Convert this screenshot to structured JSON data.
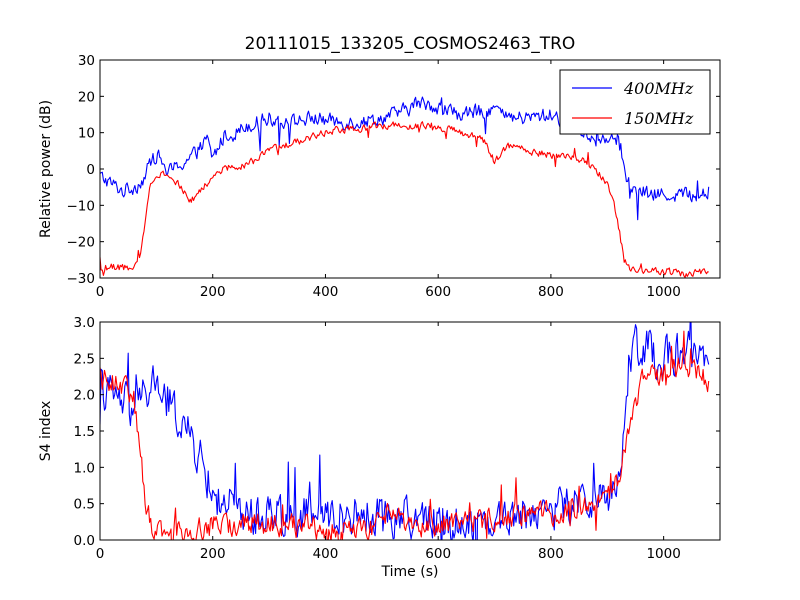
{
  "figure": {
    "title": "20111015_133205_COSMOS2463_TRO"
  },
  "chart_data": [
    {
      "type": "line",
      "title": "20111015_133205_COSMOS2463_TRO",
      "xlabel": "",
      "ylabel": "Relative power (dB)",
      "xlim": [
        0,
        1100
      ],
      "ylim": [
        -30,
        30
      ],
      "xticks": [
        0,
        200,
        400,
        600,
        800,
        1000
      ],
      "yticks": [
        -30,
        -20,
        -10,
        0,
        10,
        20,
        30
      ],
      "grid": false,
      "legend": "top-right",
      "noise_scale": 1.0,
      "series": [
        {
          "name": "400MHz",
          "color": "#0000ff",
          "x": [
            0,
            20,
            40,
            60,
            70,
            80,
            90,
            100,
            110,
            120,
            140,
            160,
            180,
            190,
            200,
            220,
            240,
            260,
            280,
            300,
            340,
            380,
            420,
            460,
            500,
            540,
            560,
            580,
            600,
            640,
            680,
            700,
            720,
            760,
            800,
            840,
            860,
            880,
            900,
            910,
            920,
            930,
            940,
            960,
            1000,
            1040,
            1080
          ],
          "values": [
            -2,
            -4,
            -6,
            -5,
            -4,
            -2,
            2,
            4,
            2,
            -1,
            1,
            3,
            6,
            8,
            3,
            9,
            10,
            12,
            13,
            14,
            13,
            14,
            13,
            13,
            14,
            16,
            18,
            18,
            17,
            15,
            16,
            17,
            14,
            14,
            15,
            12,
            10,
            8,
            9,
            10,
            8,
            0,
            -6,
            -7,
            -7,
            -7,
            -7
          ],
          "noise": 2.8
        },
        {
          "name": "150MHz",
          "color": "#ff0000",
          "x": [
            0,
            20,
            40,
            60,
            70,
            80,
            90,
            100,
            110,
            120,
            140,
            160,
            180,
            200,
            220,
            240,
            260,
            280,
            300,
            340,
            380,
            420,
            460,
            500,
            540,
            580,
            620,
            640,
            660,
            680,
            700,
            720,
            740,
            760,
            800,
            840,
            860,
            880,
            900,
            910,
            920,
            930,
            940,
            960,
            1000,
            1040,
            1080
          ],
          "values": [
            -28,
            -27,
            -27,
            -28,
            -25,
            -14,
            -4,
            -1,
            -1,
            -2,
            -4,
            -9,
            -6,
            -2,
            0,
            1,
            1,
            3,
            5,
            7,
            9,
            11,
            11,
            12,
            12,
            12,
            11,
            10,
            9,
            8,
            2,
            6,
            7,
            5,
            4,
            3,
            2,
            0,
            -4,
            -8,
            -16,
            -25,
            -28,
            -28,
            -28,
            -29,
            -28
          ],
          "noise": 1.4
        }
      ]
    },
    {
      "type": "line",
      "title": "",
      "xlabel": "Time (s)",
      "ylabel": "S4 index",
      "xlim": [
        0,
        1100
      ],
      "ylim": [
        0,
        3
      ],
      "xticks": [
        0,
        200,
        400,
        600,
        800,
        1000
      ],
      "yticks": [
        0.0,
        0.5,
        1.0,
        1.5,
        2.0,
        2.5,
        3.0
      ],
      "grid": false,
      "legend": "none",
      "noise_scale": 1.0,
      "series": [
        {
          "name": "400MHz",
          "color": "#0000ff",
          "x": [
            0,
            20,
            40,
            60,
            80,
            100,
            120,
            140,
            160,
            180,
            200,
            220,
            240,
            260,
            280,
            300,
            340,
            380,
            420,
            460,
            500,
            540,
            580,
            620,
            660,
            700,
            740,
            780,
            820,
            860,
            880,
            900,
            920,
            930,
            940,
            960,
            1000,
            1040,
            1080
          ],
          "values": [
            2.1,
            2.0,
            1.9,
            1.8,
            2.0,
            2.2,
            1.9,
            1.7,
            1.4,
            1.1,
            0.6,
            0.5,
            0.45,
            0.35,
            0.35,
            0.4,
            0.35,
            0.35,
            0.35,
            0.35,
            0.35,
            0.3,
            0.28,
            0.25,
            0.25,
            0.3,
            0.35,
            0.4,
            0.45,
            0.55,
            0.6,
            0.6,
            0.75,
            1.5,
            2.6,
            2.7,
            2.5,
            2.6,
            2.4
          ],
          "noise": 0.38
        },
        {
          "name": "150MHz",
          "color": "#ff0000",
          "x": [
            0,
            20,
            40,
            60,
            80,
            90,
            100,
            120,
            140,
            160,
            200,
            240,
            300,
            360,
            420,
            460,
            500,
            520,
            540,
            560,
            580,
            620,
            660,
            700,
            740,
            780,
            820,
            860,
            880,
            900,
            920,
            940,
            960,
            1000,
            1040,
            1080
          ],
          "values": [
            2.3,
            2.2,
            2.1,
            2.0,
            0.6,
            0.2,
            0.15,
            0.15,
            0.15,
            0.15,
            0.2,
            0.2,
            0.22,
            0.18,
            0.15,
            0.15,
            0.2,
            0.5,
            0.3,
            0.2,
            0.2,
            0.25,
            0.25,
            0.3,
            0.35,
            0.35,
            0.4,
            0.45,
            0.55,
            0.65,
            0.8,
            1.6,
            2.2,
            2.3,
            2.4,
            2.2
          ],
          "noise": 0.22
        }
      ]
    }
  ]
}
